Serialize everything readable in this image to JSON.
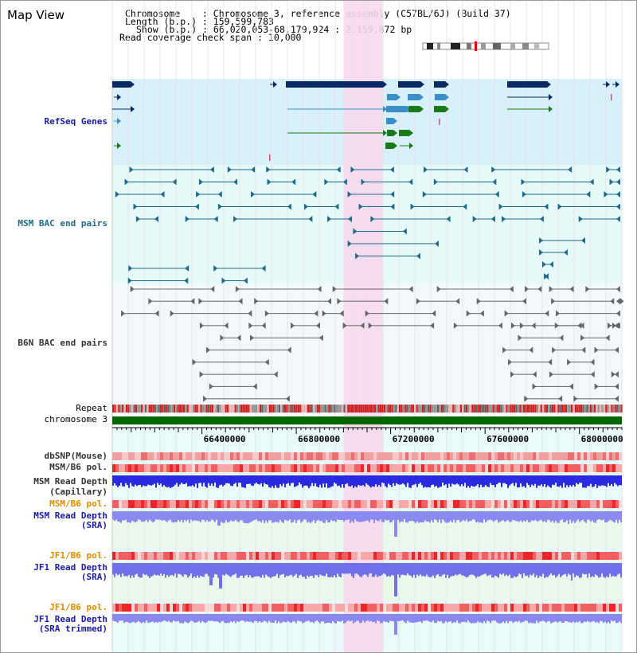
{
  "view": {
    "title": "Map View"
  },
  "header": {
    "lines": [
      "Chromosome    : Chromosome 3, reference assembly (C57BL/6J) (Build 37)",
      "Length (b.p.) : 159,599,783",
      "Show (b.p.) : 66,020,053-68,179,924 : 2,159,872 bp",
      "Read coverage check span : 10,000"
    ]
  },
  "labels": {
    "refseq": "RefSeq Genes",
    "msm_bac": "MSM BAC end pairs",
    "b6n_bac": "B6N BAC end pairs",
    "repeat": "Repeat",
    "chromosome": "chromosome 3",
    "dbsnp": "dbSNP(Mouse)",
    "msm_b6_pol": "MSM/B6 pol.",
    "msm_read_depth_cap_1": "MSM Read Depth",
    "msm_read_depth_cap_2": "(Capillary)",
    "msm_b6_pol_sra": "MSM/B6 pol.",
    "msm_read_depth_sra_1": "MSM Read Depth",
    "msm_read_depth_sra_2": "(SRA)",
    "jf1_b6_pol": "JF1/B6 pol.",
    "jf1_read_depth_1": "JF1 Read Depth",
    "jf1_read_depth_2": "(SRA)",
    "jf1_b6_pol_trim": "JF1/B6 pol.",
    "jf1_read_depth_trim_1": "JF1 Read Depth",
    "jf1_read_depth_trim_2": "(SRA trimmed)"
  },
  "axis": {
    "ticks": [
      "66400000",
      "66800000",
      "67200000",
      "67600000",
      "68000000"
    ],
    "tick_values": [
      66400000,
      66800000,
      67200000,
      67600000,
      68000000
    ],
    "range": [
      66020053,
      68179924
    ]
  },
  "highlight_region": {
    "start": 67000000,
    "end": 67165000
  },
  "colors": {
    "refseq_dark": "#0a2a66",
    "refseq_mid": "#3a8fc8",
    "refseq_green": "#1a7a1a",
    "refseq_bg": "#d8f0fa",
    "msm_bac_line": "#1f6b8a",
    "msm_bac_bg": "#e6fafa",
    "b6n_line": "#666666",
    "b6n_bg": "#f4f8fa",
    "highlight": "#f8d8f0",
    "chromosome_bar": "#006600",
    "depth_blue": "#2a2ae0",
    "depth_light_blue": "#8a8af0",
    "pol_red": "#e84040",
    "pol_pink": "#f8b8b8",
    "depth_bg": "#eafaea"
  }
}
